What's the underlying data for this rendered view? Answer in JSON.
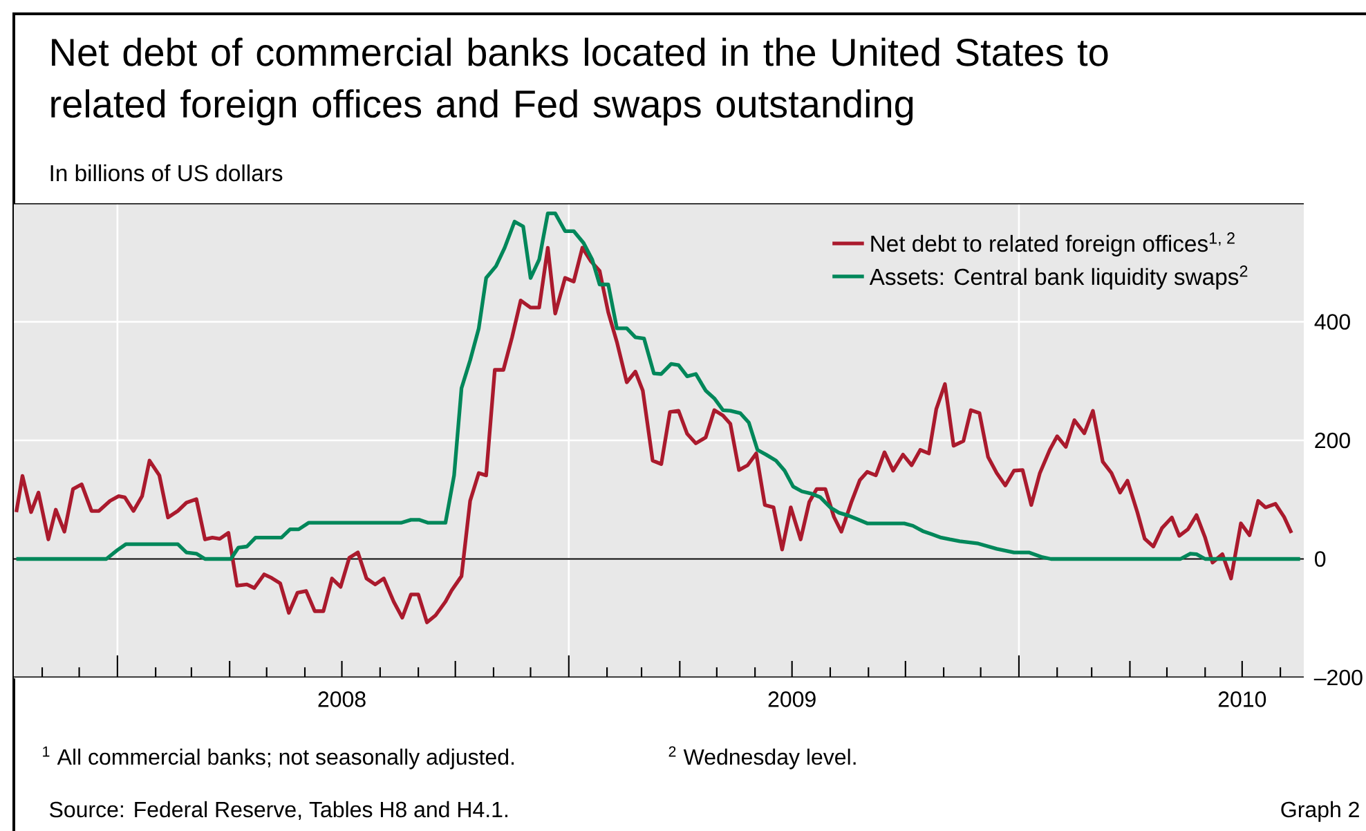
{
  "chart_data": {
    "type": "line",
    "title": "Net debt of commercial banks located in the United States to related foreign offices and Fed swaps outstanding",
    "subtitle": "In billions of US dollars",
    "annotations": [
      "$^{1}$ All commercial banks; not seasonally adjusted.",
      "$^{2}$ Wednesday level.",
      "Source: Federal Reserve, Tables H8 and H4.1.",
      "Graph 2"
    ],
    "xlim": [
      "2007-10-09",
      "2010-08-20"
    ],
    "ylim": [
      -200,
      600
    ],
    "yticks": [
      {
        "value": -200,
        "label": "–200"
      },
      0,
      200,
      400
    ],
    "xticks": [
      {
        "value": "2007-11-01",
        "label": null
      },
      {
        "value": "2007-12-01",
        "label": null
      },
      {
        "value": "2008-01-01",
        "label": null
      },
      {
        "value": "2008-02-01",
        "label": null
      },
      {
        "value": "2008-03-01",
        "label": null
      },
      {
        "value": "2008-04-01",
        "label": null
      },
      {
        "value": "2008-05-01",
        "label": null
      },
      {
        "value": "2008-06-01",
        "label": null
      },
      {
        "value": "2008-07-01",
        "label": "2008"
      },
      {
        "value": "2008-08-01",
        "label": null
      },
      {
        "value": "2008-09-01",
        "label": null
      },
      {
        "value": "2008-10-01",
        "label": null
      },
      {
        "value": "2008-11-01",
        "label": null
      },
      {
        "value": "2008-12-01",
        "label": null
      },
      {
        "value": "2009-01-01",
        "label": null
      },
      {
        "value": "2009-02-01",
        "label": null
      },
      {
        "value": "2009-03-01",
        "label": null
      },
      {
        "value": "2009-04-01",
        "label": null
      },
      {
        "value": "2009-05-01",
        "label": null
      },
      {
        "value": "2009-06-01",
        "label": null
      },
      {
        "value": "2009-07-01",
        "label": "2009"
      },
      {
        "value": "2009-08-01",
        "label": null
      },
      {
        "value": "2009-09-01",
        "label": null
      },
      {
        "value": "2009-10-01",
        "label": null
      },
      {
        "value": "2009-11-01",
        "label": null
      },
      {
        "value": "2009-12-01",
        "label": null
      },
      {
        "value": "2010-01-01",
        "label": null
      },
      {
        "value": "2010-02-01",
        "label": null
      },
      {
        "value": "2010-03-01",
        "label": null
      },
      {
        "value": "2010-04-01",
        "label": null
      },
      {
        "value": "2010-05-01",
        "label": null
      },
      {
        "value": "2010-06-01",
        "label": null
      },
      {
        "value": "2010-07-01",
        "label": "2010"
      },
      {
        "value": "2010-08-01",
        "label": null
      }
    ],
    "grid": true,
    "legend": "top right",
    "ref_lines": [
      {
        "axis": "y",
        "value": 0
      }
    ],
    "series": [
      {
        "name": "Net debt to related foreign offices$^{1, 2}$",
        "color": "#aa1a2d",
        "x": [
          "2007-10-11",
          "2007-10-16",
          "2007-10-23",
          "2007-10-29",
          "2007-11-06",
          "2007-11-12",
          "2007-11-19",
          "2007-11-26",
          "2007-12-03",
          "2007-12-11",
          "2007-12-17",
          "2007-12-26",
          "2008-01-02",
          "2008-01-07",
          "2008-01-14",
          "2008-01-21",
          "2008-01-27",
          "2008-02-04",
          "2008-02-11",
          "2008-02-19",
          "2008-02-26",
          "2008-03-05",
          "2008-03-12",
          "2008-03-18",
          "2008-03-24",
          "2008-03-31",
          "2008-04-07",
          "2008-04-15",
          "2008-04-21",
          "2008-04-29",
          "2008-05-05",
          "2008-05-12",
          "2008-05-19",
          "2008-05-26",
          "2008-06-02",
          "2008-06-09",
          "2008-06-16",
          "2008-06-23",
          "2008-06-30",
          "2008-07-07",
          "2008-07-14",
          "2008-07-21",
          "2008-07-28",
          "2008-08-04",
          "2008-08-12",
          "2008-08-19",
          "2008-08-26",
          "2008-09-01",
          "2008-09-08",
          "2008-09-15",
          "2008-09-23",
          "2008-09-28",
          "2008-10-06",
          "2008-10-13",
          "2008-10-20",
          "2008-10-26",
          "2008-11-02",
          "2008-11-09",
          "2008-11-16",
          "2008-11-23",
          "2008-12-01",
          "2008-12-08",
          "2008-12-15",
          "2008-12-21",
          "2008-12-29",
          "2009-01-05",
          "2009-01-12",
          "2009-01-19",
          "2009-01-26",
          "2009-02-02",
          "2009-02-09",
          "2009-02-17",
          "2009-02-24",
          "2009-03-02",
          "2009-03-10",
          "2009-03-17",
          "2009-03-24",
          "2009-03-31",
          "2009-04-07",
          "2009-04-14",
          "2009-04-22",
          "2009-04-29",
          "2009-05-06",
          "2009-05-12",
          "2009-05-19",
          "2009-05-26",
          "2009-06-02",
          "2009-06-09",
          "2009-06-16",
          "2009-06-23",
          "2009-06-30",
          "2009-07-08",
          "2009-07-15",
          "2009-07-21",
          "2009-07-28",
          "2009-08-04",
          "2009-08-10",
          "2009-08-18",
          "2009-08-25",
          "2009-08-31",
          "2009-09-07",
          "2009-09-14",
          "2009-09-21",
          "2009-09-29",
          "2009-10-06",
          "2009-10-13",
          "2009-10-20",
          "2009-10-26",
          "2009-11-02",
          "2009-11-09",
          "2009-11-17",
          "2009-11-23",
          "2009-11-30",
          "2009-12-07",
          "2009-12-14",
          "2009-12-21",
          "2009-12-28",
          "2010-01-04",
          "2010-01-11",
          "2010-01-18",
          "2010-01-26",
          "2010-02-01",
          "2010-02-08",
          "2010-02-15",
          "2010-02-23",
          "2010-03-02",
          "2010-03-10",
          "2010-03-17",
          "2010-03-24",
          "2010-03-30",
          "2010-04-07",
          "2010-04-13",
          "2010-04-20",
          "2010-04-27",
          "2010-05-05",
          "2010-05-11",
          "2010-05-18",
          "2010-05-25",
          "2010-06-01",
          "2010-06-07",
          "2010-06-15",
          "2010-06-22",
          "2010-06-30",
          "2010-07-07",
          "2010-07-14",
          "2010-07-20",
          "2010-07-28",
          "2010-08-04",
          "2010-08-10"
        ],
        "values": [
          79,
          140,
          79,
          112,
          33,
          83,
          46,
          118,
          126,
          81,
          81,
          98,
          106,
          104,
          81,
          106,
          166,
          141,
          70,
          81,
          95,
          101,
          33,
          36,
          34,
          44,
          -45,
          -43,
          -49,
          -26,
          -32,
          -41,
          -91,
          -57,
          -54,
          -88,
          -88,
          -33,
          -47,
          2,
          11,
          -33,
          -43,
          -33,
          -72,
          -99,
          -60,
          -60,
          -107,
          -95,
          -72,
          -53,
          -29,
          98,
          145,
          141,
          319,
          319,
          374,
          436,
          424,
          424,
          525,
          414,
          474,
          468,
          525,
          502,
          486,
          416,
          366,
          298,
          316,
          284,
          166,
          160,
          248,
          250,
          211,
          195,
          205,
          251,
          242,
          228,
          150,
          158,
          178,
          91,
          87,
          16,
          87,
          33,
          96,
          118,
          118,
          71,
          46,
          95,
          133,
          147,
          141,
          180,
          149,
          176,
          158,
          184,
          178,
          253,
          295,
          191,
          199,
          251,
          246,
          172,
          145,
          124,
          149,
          150,
          91,
          145,
          184,
          207,
          189,
          234,
          212,
          250,
          164,
          145,
          112,
          132,
          79,
          34,
          21,
          52,
          70,
          39,
          50,
          74,
          36,
          -6,
          8,
          -33,
          60,
          40,
          98,
          87,
          93,
          71,
          44
        ]
      },
      {
        "name": "Assets: Central bank liquidity swaps$^{2}$",
        "color": "#00875a",
        "x": [
          "2007-10-11",
          "2007-12-23",
          "2008-01-01",
          "2008-01-08",
          "2008-02-19",
          "2008-02-26",
          "2008-03-05",
          "2008-03-12",
          "2008-04-02",
          "2008-04-08",
          "2008-04-15",
          "2008-04-22",
          "2008-05-13",
          "2008-05-20",
          "2008-05-27",
          "2008-06-04",
          "2008-08-18",
          "2008-08-26",
          "2008-09-02",
          "2008-09-09",
          "2008-09-23",
          "2008-09-30",
          "2008-10-06",
          "2008-10-13",
          "2008-10-20",
          "2008-10-26",
          "2008-11-03",
          "2008-11-10",
          "2008-11-18",
          "2008-11-25",
          "2008-12-01",
          "2008-12-08",
          "2008-12-15",
          "2008-12-21",
          "2008-12-29",
          "2009-01-05",
          "2009-01-13",
          "2009-01-20",
          "2009-01-26",
          "2009-02-02",
          "2009-02-09",
          "2009-02-17",
          "2009-02-24",
          "2009-03-03",
          "2009-03-11",
          "2009-03-17",
          "2009-03-25",
          "2009-03-31",
          "2009-04-07",
          "2009-04-14",
          "2009-04-22",
          "2009-04-29",
          "2009-05-06",
          "2009-05-12",
          "2009-05-20",
          "2009-05-27",
          "2009-06-03",
          "2009-06-10",
          "2009-06-18",
          "2009-06-25",
          "2009-07-02",
          "2009-07-09",
          "2009-07-17",
          "2009-07-24",
          "2009-08-01",
          "2009-08-08",
          "2009-08-16",
          "2009-08-23",
          "2009-08-31",
          "2009-09-15",
          "2009-09-30",
          "2009-10-07",
          "2009-10-15",
          "2009-10-22",
          "2009-10-30",
          "2009-11-06",
          "2009-11-14",
          "2009-11-29",
          "2009-12-14",
          "2009-12-28",
          "2010-01-09",
          "2010-01-20",
          "2010-01-27",
          "2010-05-12",
          "2010-05-20",
          "2010-05-25",
          "2010-06-01",
          "2010-08-17"
        ],
        "values": [
          0,
          0,
          15,
          25,
          25,
          11,
          9,
          0,
          0,
          19,
          21,
          36,
          36,
          50,
          50,
          61,
          61,
          66,
          66,
          61,
          61,
          141,
          288,
          335,
          389,
          474,
          494,
          525,
          569,
          561,
          474,
          505,
          583,
          583,
          553,
          553,
          533,
          505,
          463,
          463,
          389,
          389,
          374,
          372,
          313,
          312,
          329,
          327,
          308,
          312,
          284,
          271,
          251,
          250,
          246,
          230,
          184,
          176,
          166,
          149,
          122,
          114,
          110,
          104,
          87,
          78,
          73,
          67,
          60,
          60,
          60,
          56,
          47,
          42,
          36,
          33,
          30,
          26,
          17,
          11,
          11,
          3,
          0,
          0,
          9,
          8,
          0,
          0
        ]
      }
    ]
  }
}
